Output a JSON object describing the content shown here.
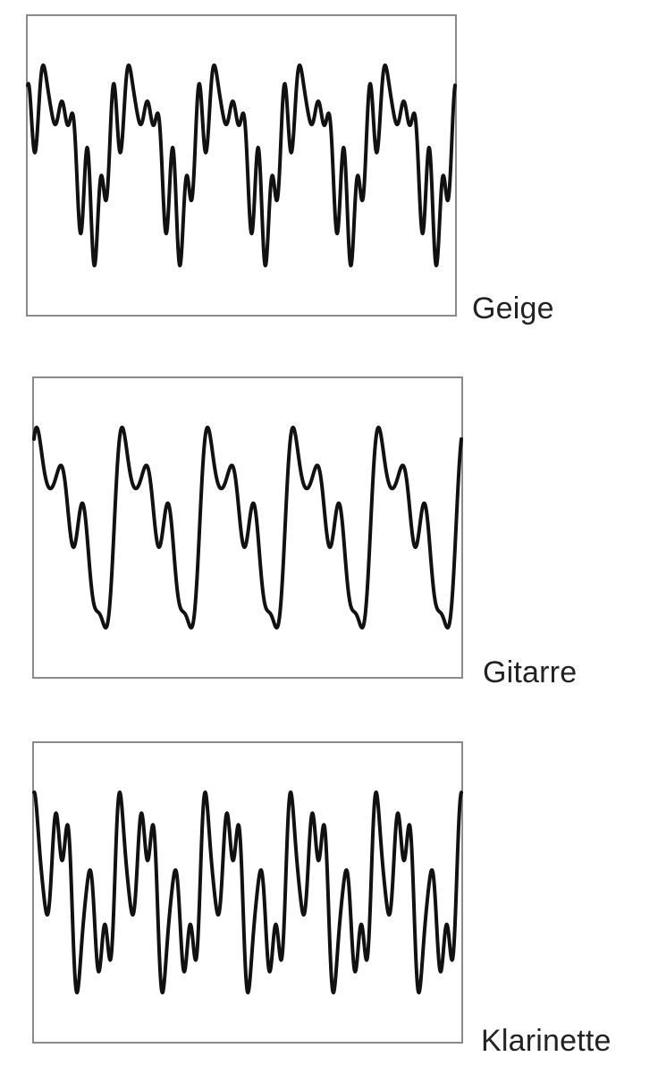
{
  "waveforms": [
    {
      "label": "Geige",
      "color": "#111111",
      "cycles": 5,
      "harmonics": [
        [
          1,
          1.0,
          0
        ],
        [
          2,
          0.25,
          1.2
        ],
        [
          4,
          0.35,
          2.5
        ],
        [
          6,
          0.45,
          0.7
        ],
        [
          7,
          0.3,
          2.0
        ]
      ]
    },
    {
      "label": "Gitarre",
      "color": "#111111",
      "cycles": 5,
      "harmonics": [
        [
          1,
          1.0,
          0.2
        ],
        [
          2,
          0.55,
          0.9
        ],
        [
          3,
          0.4,
          1.8
        ],
        [
          4,
          0.25,
          0.4
        ],
        [
          5,
          0.15,
          2.3
        ]
      ]
    },
    {
      "label": "Klarinette",
      "color": "#111111",
      "cycles": 5,
      "harmonics": [
        [
          1,
          0.8,
          0.4
        ],
        [
          3,
          0.9,
          1.6
        ],
        [
          5,
          0.55,
          0.9
        ],
        [
          7,
          0.3,
          2.7
        ]
      ]
    }
  ]
}
